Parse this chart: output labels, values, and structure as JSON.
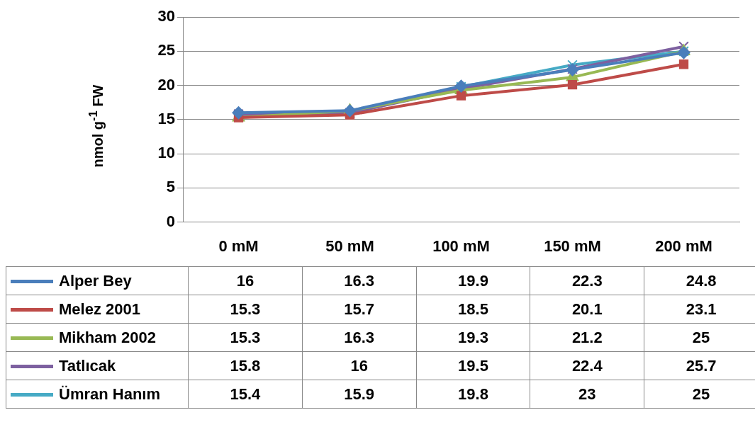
{
  "chart_data": {
    "type": "line",
    "ylabel": "nmol g$^{-1}$ FW",
    "categories": [
      "0 mM",
      "50 mM",
      "100 mM",
      "150 mM",
      "200 mM"
    ],
    "series": [
      {
        "name": "Alper Bey",
        "color": "#4a7ebb",
        "marker": "diamond",
        "values": [
          16,
          16.3,
          19.9,
          22.3,
          24.8
        ]
      },
      {
        "name": "Melez 2001",
        "color": "#be4b48",
        "marker": "square",
        "values": [
          15.3,
          15.7,
          18.5,
          20.1,
          23.1
        ]
      },
      {
        "name": "Mikham 2002",
        "color": "#98b954",
        "marker": "triangle",
        "values": [
          15.3,
          16.3,
          19.3,
          21.2,
          25
        ]
      },
      {
        "name": "Tatlıcak",
        "color": "#7d60a0",
        "marker": "cross",
        "values": [
          15.8,
          16,
          19.5,
          22.4,
          25.7
        ]
      },
      {
        "name": "Ümran Hanım",
        "color": "#46aac5",
        "marker": "cross",
        "values": [
          15.4,
          15.9,
          19.8,
          23,
          25
        ]
      }
    ],
    "ylim": [
      0,
      30
    ],
    "yticks": [
      0,
      5,
      10,
      15,
      20,
      25,
      30
    ],
    "grid": "y",
    "legend": "bottom",
    "data_labels": true
  }
}
